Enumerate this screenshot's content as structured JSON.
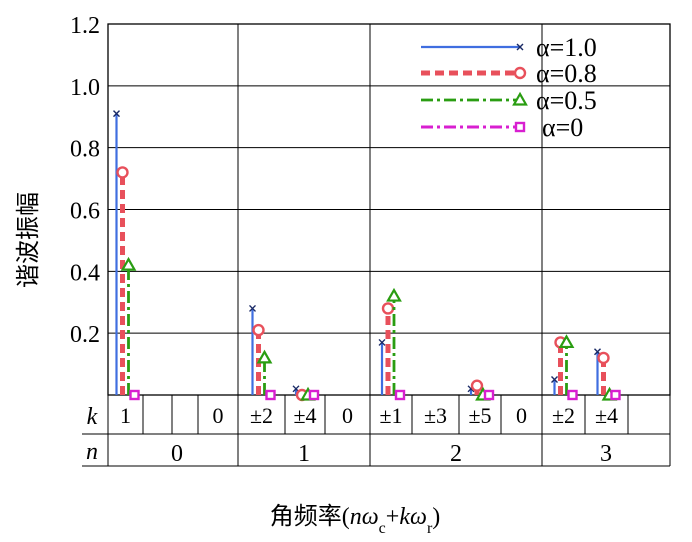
{
  "chart_data": {
    "type": "stem",
    "ylabel": "谐波振幅",
    "xlabel_prefix": "角频率(",
    "xlabel_suffix": ")",
    "xlabel_parts": [
      {
        "t": "n",
        "i": true
      },
      {
        "t": "ω",
        "i": true
      },
      {
        "t": "c",
        "sub": true
      },
      {
        "t": "+",
        "i": false
      },
      {
        "t": "k",
        "i": true
      },
      {
        "t": "ω",
        "i": true
      },
      {
        "t": "r",
        "sub": true
      }
    ],
    "ylim": [
      0,
      1.2
    ],
    "yticks": [
      "0.2",
      "0.4",
      "0.6",
      "0.8",
      "1.0",
      "1.2"
    ],
    "row_labels": {
      "k": "k",
      "n": "n"
    },
    "n_groups": [
      "0",
      "1",
      "2",
      "3"
    ],
    "k_labels": [
      "1",
      "",
      "",
      "0",
      "±2",
      "±4",
      "0",
      "±1",
      "±3",
      "±5",
      "0",
      "±2",
      "±4"
    ],
    "grid": true,
    "legend_position": "top-right",
    "series": [
      {
        "name": "α=1.0",
        "legend": "α=1.0",
        "color": "#3f6ee0",
        "marker": "x",
        "dash": "solid",
        "points": [
          [
            0,
            0.91
          ],
          [
            4,
            0.28
          ],
          [
            5,
            0.02
          ],
          [
            7,
            0.17
          ],
          [
            9,
            0.02
          ],
          [
            11,
            0.05
          ],
          [
            12,
            0.14
          ]
        ]
      },
      {
        "name": "α=0.8",
        "legend": "α=0.8",
        "color": "#e8505b",
        "marker": "circle",
        "dash": "dash",
        "points": [
          [
            0,
            0.72
          ],
          [
            4,
            0.21
          ],
          [
            5,
            0.0
          ],
          [
            7,
            0.28
          ],
          [
            9,
            0.03
          ],
          [
            11,
            0.17
          ],
          [
            12,
            0.12
          ]
        ]
      },
      {
        "name": "α=0.5",
        "legend": "α=0.5",
        "color": "#2a9d12",
        "marker": "triangle",
        "dash": "dashdot",
        "points": [
          [
            0,
            0.42
          ],
          [
            4,
            0.12
          ],
          [
            5,
            0.0
          ],
          [
            7,
            0.32
          ],
          [
            9,
            0.0
          ],
          [
            11,
            0.17
          ],
          [
            12,
            0.0
          ]
        ]
      },
      {
        "name": "α=0",
        "legend": "α=0",
        "color": "#d81fd0",
        "marker": "square",
        "dash": "dashdot",
        "points": [
          [
            0,
            0.0
          ],
          [
            4,
            0.0
          ],
          [
            5,
            0.0
          ],
          [
            7,
            0.0
          ],
          [
            9,
            0.0
          ],
          [
            11,
            0.0
          ],
          [
            12,
            0.0
          ]
        ]
      }
    ]
  }
}
